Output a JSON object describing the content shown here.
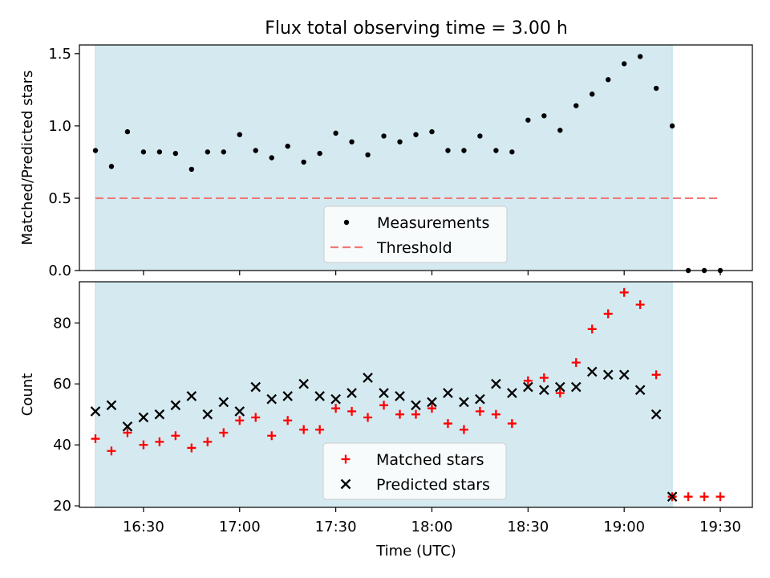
{
  "chart_data": {
    "type": "scatter",
    "title": "Flux total observing time = 3.00 h",
    "xlabel": "Time (UTC)",
    "x_tick_labels": [
      "16:30",
      "17:00",
      "17:30",
      "18:00",
      "18:30",
      "19:00",
      "19:30"
    ],
    "x_range": [
      "16:10",
      "19:40"
    ],
    "observing_window": [
      "16:15",
      "19:15"
    ],
    "colors": {
      "window_fill": "#d4eaf0",
      "window_edge": "#b3dde5",
      "measurement": "#000000",
      "threshold": "#f07878",
      "matched": "#ff0000",
      "predicted": "#000000"
    },
    "panels": [
      {
        "ylabel": "Matched/Predicted stars",
        "ylim": [
          0,
          1.56
        ],
        "y_ticks": [
          0.0,
          0.5,
          1.0,
          1.5
        ],
        "y_tick_labels": [
          "0.0",
          "0.5",
          "1.0",
          "1.5"
        ],
        "legend_position": "lower center",
        "series": [
          {
            "name": "Measurements",
            "marker": "dot",
            "x": [
              "16:15",
              "16:20",
              "16:25",
              "16:30",
              "16:35",
              "16:40",
              "16:45",
              "16:50",
              "16:55",
              "17:00",
              "17:05",
              "17:10",
              "17:15",
              "17:20",
              "17:25",
              "17:30",
              "17:35",
              "17:40",
              "17:45",
              "17:50",
              "17:55",
              "18:00",
              "18:05",
              "18:10",
              "18:15",
              "18:20",
              "18:25",
              "18:30",
              "18:35",
              "18:40",
              "18:45",
              "18:50",
              "18:55",
              "19:00",
              "19:05",
              "19:10",
              "19:15",
              "19:20",
              "19:25",
              "19:30"
            ],
            "values": [
              0.83,
              0.72,
              0.96,
              0.82,
              0.82,
              0.81,
              0.7,
              0.82,
              0.82,
              0.94,
              0.83,
              0.78,
              0.86,
              0.75,
              0.81,
              0.95,
              0.89,
              0.8,
              0.93,
              0.89,
              0.94,
              0.96,
              0.83,
              0.83,
              0.93,
              0.83,
              0.82,
              1.04,
              1.07,
              0.97,
              1.14,
              1.22,
              1.32,
              1.43,
              1.48,
              1.26,
              1.0,
              0.0,
              0.0,
              0.0
            ]
          },
          {
            "name": "Threshold",
            "marker": "dashed-line",
            "x": [
              "16:15",
              "19:30"
            ],
            "values": [
              0.5,
              0.5
            ]
          }
        ]
      },
      {
        "ylabel": "Count",
        "ylim": [
          19.5,
          93.5
        ],
        "y_ticks": [
          20,
          40,
          60,
          80
        ],
        "y_tick_labels": [
          "20",
          "40",
          "60",
          "80"
        ],
        "legend_position": "lower center",
        "series": [
          {
            "name": "Matched stars",
            "marker": "plus",
            "x": [
              "16:15",
              "16:20",
              "16:25",
              "16:30",
              "16:35",
              "16:40",
              "16:45",
              "16:50",
              "16:55",
              "17:00",
              "17:05",
              "17:10",
              "17:15",
              "17:20",
              "17:25",
              "17:30",
              "17:35",
              "17:40",
              "17:45",
              "17:50",
              "17:55",
              "18:00",
              "18:05",
              "18:10",
              "18:15",
              "18:20",
              "18:25",
              "18:30",
              "18:35",
              "18:40",
              "18:45",
              "18:50",
              "18:55",
              "19:00",
              "19:05",
              "19:10",
              "19:15",
              "19:20",
              "19:25",
              "19:30"
            ],
            "values": [
              42,
              38,
              44,
              40,
              41,
              43,
              39,
              41,
              44,
              48,
              49,
              43,
              48,
              45,
              45,
              52,
              51,
              49,
              53,
              50,
              50,
              52,
              47,
              45,
              51,
              50,
              47,
              61,
              62,
              57,
              67,
              78,
              83,
              90,
              86,
              63,
              23,
              23,
              23,
              23
            ]
          },
          {
            "name": "Predicted stars",
            "marker": "x",
            "x": [
              "16:15",
              "16:20",
              "16:25",
              "16:30",
              "16:35",
              "16:40",
              "16:45",
              "16:50",
              "16:55",
              "17:00",
              "17:05",
              "17:10",
              "17:15",
              "17:20",
              "17:25",
              "17:30",
              "17:35",
              "17:40",
              "17:45",
              "17:50",
              "17:55",
              "18:00",
              "18:05",
              "18:10",
              "18:15",
              "18:20",
              "18:25",
              "18:30",
              "18:35",
              "18:40",
              "18:45",
              "18:50",
              "18:55",
              "19:00",
              "19:05",
              "19:10",
              "19:15"
            ],
            "values": [
              51,
              53,
              46,
              49,
              50,
              53,
              56,
              50,
              54,
              51,
              59,
              55,
              56,
              60,
              56,
              55,
              57,
              62,
              57,
              56,
              53,
              54,
              57,
              54,
              55,
              60,
              57,
              59,
              58,
              59,
              59,
              64,
              63,
              63,
              58,
              50,
              23
            ]
          }
        ]
      }
    ]
  }
}
